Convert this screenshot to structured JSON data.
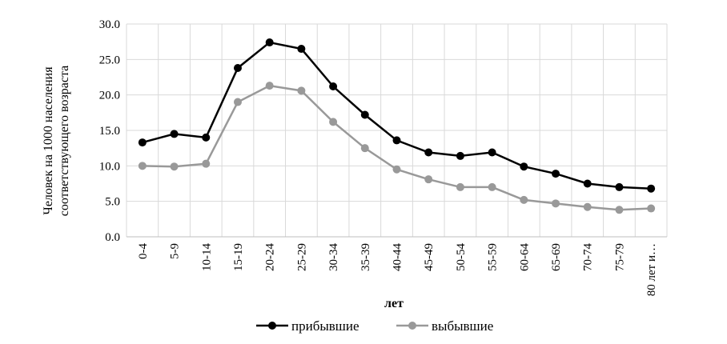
{
  "chart_data": {
    "type": "line",
    "categories": [
      "0-4",
      "5-9",
      "10-14",
      "15-19",
      "20-24",
      "25-29",
      "30-34",
      "35-39",
      "40-44",
      "45-49",
      "50-54",
      "55-59",
      "60-64",
      "65-69",
      "70-74",
      "75-79",
      "80 лет и…"
    ],
    "series": [
      {
        "name": "прибывшие",
        "color": "#000000",
        "values": [
          13.3,
          14.5,
          14.0,
          23.8,
          27.4,
          26.5,
          21.2,
          17.2,
          13.6,
          11.9,
          11.4,
          11.9,
          9.9,
          8.9,
          7.5,
          7.0,
          6.8
        ]
      },
      {
        "name": "выбывшие",
        "color": "#999999",
        "values": [
          10.0,
          9.9,
          10.3,
          19.0,
          21.3,
          20.6,
          16.2,
          12.5,
          9.5,
          8.1,
          7.0,
          7.0,
          5.2,
          4.7,
          4.2,
          3.8,
          4.0
        ]
      }
    ],
    "ylabel_lines": [
      "Человек на 1000 населения",
      "соответствующего возраста"
    ],
    "xlabel": "лет",
    "ylim": [
      0,
      30
    ],
    "yticks": [
      "0.0",
      "5.0",
      "10.0",
      "15.0",
      "20.0",
      "25.0",
      "30.0"
    ],
    "grid": true,
    "legend": "bottom"
  }
}
